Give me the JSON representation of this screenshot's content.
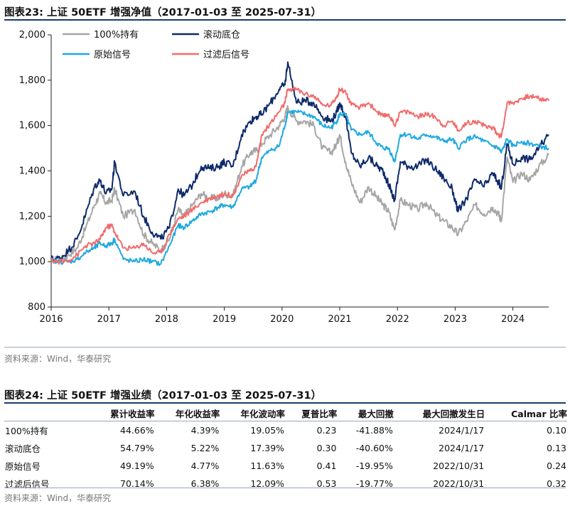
{
  "figure1": {
    "title": "图表23:  上证 50ETF 增强净值（2017-01-03 至 2025-07-31）",
    "source": "资料来源：Wind，华泰研究"
  },
  "figure2": {
    "title": "图表24:  上证 50ETF 增强业绩（2017-01-03 至 2025-07-31）",
    "source": "资料来源：Wind，华泰研究",
    "columns": [
      "",
      "累计收益率",
      "年化收益率",
      "年化波动率",
      "夏普比率",
      "最大回撤",
      "最大回撤发生日",
      "Calmar 比率"
    ],
    "rows": [
      [
        "100%持有",
        "44.66%",
        "4.39%",
        "19.05%",
        "0.23",
        "-41.88%",
        "2024/1/17",
        "0.10"
      ],
      [
        "滚动底仓",
        "54.79%",
        "5.22%",
        "17.39%",
        "0.30",
        "-40.60%",
        "2024/1/17",
        "0.13"
      ],
      [
        "原始信号",
        "49.19%",
        "4.77%",
        "11.63%",
        "0.41",
        "-19.95%",
        "2022/10/31",
        "0.24"
      ],
      [
        "过滤后信号",
        "70.14%",
        "6.38%",
        "12.09%",
        "0.53",
        "-19.77%",
        "2022/10/31",
        "0.32"
      ]
    ]
  },
  "chart_data": {
    "type": "line",
    "title": "上证 50ETF 增强净值",
    "xlabel": "",
    "ylabel": "",
    "xlim": [
      2016.0,
      2024.62
    ],
    "ylim": [
      800,
      2000
    ],
    "yticks": [
      800,
      1000,
      1200,
      1400,
      1600,
      1800,
      2000
    ],
    "ytick_labels": [
      "800",
      "1,000",
      "1,200",
      "1,400",
      "1,600",
      "1,800",
      "2,000"
    ],
    "xticks": [
      2016,
      2017,
      2018,
      2019,
      2020,
      2021,
      2022,
      2023,
      2024
    ],
    "xtick_labels": [
      "2016",
      "2017",
      "2018",
      "2019",
      "2020",
      "2021",
      "2022",
      "2023",
      "2024"
    ],
    "legend_position": "top-left",
    "series": [
      {
        "name": "100%持有",
        "color": "#a6a6a6",
        "x": [
          2016.0,
          2016.15,
          2016.3,
          2016.45,
          2016.6,
          2016.75,
          2016.85,
          2016.95,
          2017.05,
          2017.1,
          2017.25,
          2017.45,
          2017.6,
          2017.75,
          2017.9,
          2018.05,
          2018.2,
          2018.3,
          2018.45,
          2018.6,
          2018.75,
          2018.9,
          2019.0,
          2019.15,
          2019.3,
          2019.45,
          2019.55,
          2019.65,
          2019.8,
          2019.95,
          2020.05,
          2020.1,
          2020.25,
          2020.4,
          2020.55,
          2020.7,
          2020.85,
          2020.95,
          2021.0,
          2021.1,
          2021.2,
          2021.35,
          2021.5,
          2021.65,
          2021.75,
          2021.85,
          2021.95,
          2022.05,
          2022.2,
          2022.35,
          2022.5,
          2022.65,
          2022.8,
          2022.95,
          2023.05,
          2023.2,
          2023.35,
          2023.5,
          2023.65,
          2023.75,
          2023.8,
          2023.9,
          2024.0,
          2024.15,
          2024.3,
          2024.45,
          2024.62
        ],
        "values": [
          1010,
          1005,
          1030,
          1060,
          1150,
          1250,
          1300,
          1260,
          1270,
          1320,
          1200,
          1230,
          1120,
          1080,
          1050,
          1100,
          1230,
          1200,
          1250,
          1300,
          1280,
          1280,
          1300,
          1290,
          1420,
          1480,
          1490,
          1520,
          1560,
          1600,
          1640,
          1680,
          1620,
          1620,
          1600,
          1500,
          1480,
          1520,
          1560,
          1440,
          1350,
          1260,
          1330,
          1280,
          1250,
          1220,
          1140,
          1270,
          1250,
          1230,
          1260,
          1210,
          1180,
          1150,
          1120,
          1180,
          1250,
          1210,
          1240,
          1210,
          1180,
          1460,
          1350,
          1390,
          1360,
          1420,
          1470
        ]
      },
      {
        "name": "滚动底仓",
        "color": "#0e2a6a",
        "x": [
          2016.0,
          2016.15,
          2016.3,
          2016.45,
          2016.6,
          2016.75,
          2016.85,
          2016.95,
          2017.05,
          2017.1,
          2017.25,
          2017.45,
          2017.6,
          2017.75,
          2017.9,
          2018.05,
          2018.2,
          2018.3,
          2018.45,
          2018.6,
          2018.75,
          2018.9,
          2019.0,
          2019.15,
          2019.3,
          2019.45,
          2019.55,
          2019.65,
          2019.8,
          2019.95,
          2020.05,
          2020.1,
          2020.25,
          2020.4,
          2020.55,
          2020.7,
          2020.85,
          2020.95,
          2021.0,
          2021.1,
          2021.2,
          2021.35,
          2021.5,
          2021.65,
          2021.75,
          2021.85,
          2021.95,
          2022.05,
          2022.2,
          2022.35,
          2022.5,
          2022.65,
          2022.8,
          2022.95,
          2023.05,
          2023.2,
          2023.35,
          2023.5,
          2023.65,
          2023.75,
          2023.8,
          2023.9,
          2024.0,
          2024.15,
          2024.3,
          2024.45,
          2024.62
        ],
        "values": [
          1010,
          1015,
          1050,
          1100,
          1210,
          1330,
          1360,
          1300,
          1320,
          1440,
          1290,
          1310,
          1200,
          1130,
          1100,
          1150,
          1320,
          1290,
          1340,
          1420,
          1410,
          1420,
          1440,
          1420,
          1560,
          1620,
          1640,
          1650,
          1700,
          1760,
          1780,
          1880,
          1700,
          1710,
          1700,
          1640,
          1620,
          1660,
          1700,
          1640,
          1480,
          1420,
          1460,
          1420,
          1400,
          1340,
          1270,
          1440,
          1420,
          1420,
          1450,
          1410,
          1370,
          1320,
          1220,
          1280,
          1360,
          1330,
          1390,
          1350,
          1320,
          1520,
          1430,
          1460,
          1450,
          1500,
          1560
        ]
      },
      {
        "name": "原始信号",
        "color": "#1fa9e1",
        "x": [
          2016.0,
          2016.15,
          2016.3,
          2016.45,
          2016.6,
          2016.75,
          2016.85,
          2016.95,
          2017.05,
          2017.1,
          2017.25,
          2017.45,
          2017.6,
          2017.75,
          2017.9,
          2018.05,
          2018.2,
          2018.3,
          2018.45,
          2018.6,
          2018.75,
          2018.9,
          2019.0,
          2019.15,
          2019.3,
          2019.45,
          2019.55,
          2019.65,
          2019.8,
          2019.95,
          2020.05,
          2020.1,
          2020.25,
          2020.4,
          2020.55,
          2020.7,
          2020.85,
          2020.95,
          2021.0,
          2021.1,
          2021.2,
          2021.35,
          2021.5,
          2021.65,
          2021.75,
          2021.85,
          2021.95,
          2022.05,
          2022.2,
          2022.35,
          2022.5,
          2022.65,
          2022.8,
          2022.95,
          2023.05,
          2023.2,
          2023.35,
          2023.5,
          2023.65,
          2023.75,
          2023.8,
          2023.9,
          2024.0,
          2024.15,
          2024.3,
          2024.45,
          2024.62
        ],
        "values": [
          1005,
          1000,
          1000,
          1010,
          1040,
          1060,
          1080,
          1070,
          1080,
          1100,
          1010,
          1000,
          1010,
          1000,
          990,
          1070,
          1160,
          1150,
          1180,
          1210,
          1220,
          1240,
          1250,
          1240,
          1320,
          1330,
          1360,
          1460,
          1490,
          1510,
          1600,
          1660,
          1660,
          1650,
          1640,
          1600,
          1590,
          1620,
          1650,
          1650,
          1580,
          1560,
          1570,
          1520,
          1500,
          1500,
          1440,
          1560,
          1560,
          1540,
          1560,
          1550,
          1530,
          1540,
          1500,
          1540,
          1550,
          1530,
          1510,
          1500,
          1480,
          1540,
          1510,
          1530,
          1520,
          1510,
          1500
        ]
      },
      {
        "name": "过滤后信号",
        "color": "#f26b6b",
        "x": [
          2016.0,
          2016.15,
          2016.3,
          2016.45,
          2016.6,
          2016.75,
          2016.85,
          2016.95,
          2017.05,
          2017.1,
          2017.25,
          2017.45,
          2017.6,
          2017.75,
          2017.9,
          2018.05,
          2018.2,
          2018.3,
          2018.45,
          2018.6,
          2018.75,
          2018.9,
          2019.0,
          2019.15,
          2019.3,
          2019.45,
          2019.55,
          2019.65,
          2019.8,
          2019.95,
          2020.05,
          2020.1,
          2020.25,
          2020.4,
          2020.55,
          2020.7,
          2020.85,
          2020.95,
          2021.0,
          2021.1,
          2021.2,
          2021.35,
          2021.5,
          2021.65,
          2021.75,
          2021.85,
          2021.95,
          2022.05,
          2022.2,
          2022.35,
          2022.5,
          2022.65,
          2022.8,
          2022.95,
          2023.05,
          2023.2,
          2023.35,
          2023.5,
          2023.65,
          2023.75,
          2023.8,
          2023.9,
          2024.0,
          2024.15,
          2024.3,
          2024.45,
          2024.62
        ],
        "values": [
          1005,
          1000,
          1005,
          1030,
          1070,
          1080,
          1100,
          1150,
          1160,
          1130,
          1060,
          1060,
          1080,
          1040,
          1040,
          1120,
          1190,
          1200,
          1230,
          1260,
          1280,
          1290,
          1300,
          1290,
          1380,
          1400,
          1420,
          1560,
          1610,
          1660,
          1700,
          1760,
          1760,
          1740,
          1730,
          1690,
          1690,
          1730,
          1760,
          1750,
          1690,
          1680,
          1700,
          1660,
          1640,
          1650,
          1600,
          1660,
          1660,
          1640,
          1650,
          1640,
          1600,
          1620,
          1580,
          1610,
          1620,
          1600,
          1590,
          1560,
          1550,
          1700,
          1700,
          1720,
          1730,
          1720,
          1710
        ]
      }
    ]
  }
}
